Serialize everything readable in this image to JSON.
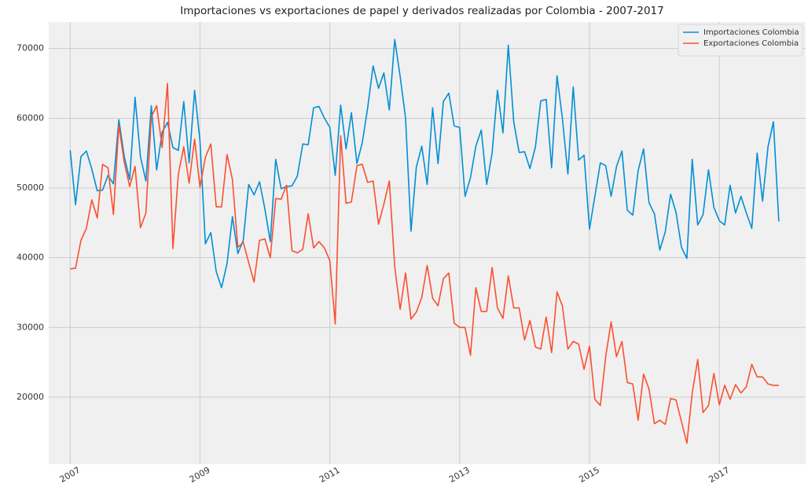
{
  "chart_data": {
    "type": "line",
    "title": "Importaciones vs exportaciones de papel y derivados realizadas por Colombia - 2007-2017",
    "x": [
      2007,
      2007.083,
      2007.167,
      2007.25,
      2007.333,
      2007.417,
      2007.5,
      2007.583,
      2007.667,
      2007.75,
      2007.833,
      2007.917,
      2008,
      2008.083,
      2008.167,
      2008.25,
      2008.333,
      2008.417,
      2008.5,
      2008.583,
      2008.667,
      2008.75,
      2008.833,
      2008.917,
      2009,
      2009.083,
      2009.167,
      2009.25,
      2009.333,
      2009.417,
      2009.5,
      2009.583,
      2009.667,
      2009.75,
      2009.833,
      2009.917,
      2010,
      2010.083,
      2010.167,
      2010.25,
      2010.333,
      2010.417,
      2010.5,
      2010.583,
      2010.667,
      2010.75,
      2010.833,
      2010.917,
      2011,
      2011.083,
      2011.167,
      2011.25,
      2011.333,
      2011.417,
      2011.5,
      2011.583,
      2011.667,
      2011.75,
      2011.833,
      2011.917,
      2012,
      2012.083,
      2012.167,
      2012.25,
      2012.333,
      2012.417,
      2012.5,
      2012.583,
      2012.667,
      2012.75,
      2012.833,
      2012.917,
      2013,
      2013.083,
      2013.167,
      2013.25,
      2013.333,
      2013.417,
      2013.5,
      2013.583,
      2013.667,
      2013.75,
      2013.833,
      2013.917,
      2014,
      2014.083,
      2014.167,
      2014.25,
      2014.333,
      2014.417,
      2014.5,
      2014.583,
      2014.667,
      2014.75,
      2014.833,
      2014.917,
      2015,
      2015.083,
      2015.167,
      2015.25,
      2015.333,
      2015.417,
      2015.5,
      2015.583,
      2015.667,
      2015.75,
      2015.833,
      2015.917,
      2016,
      2016.083,
      2016.167,
      2016.25,
      2016.333,
      2016.417,
      2016.5,
      2016.583,
      2016.667,
      2016.75,
      2016.833,
      2016.917,
      2017,
      2017.083,
      2017.167,
      2017.25,
      2017.333,
      2017.417,
      2017.5,
      2017.583,
      2017.667,
      2017.75,
      2017.833,
      2017.917
    ],
    "series": [
      {
        "name": "Importaciones Colombia",
        "color": "#008fd5",
        "values": [
          55400,
          47600,
          54500,
          55300,
          52700,
          49600,
          49700,
          51800,
          50600,
          59800,
          54500,
          51200,
          63000,
          54500,
          51000,
          61800,
          52600,
          58000,
          59400,
          55800,
          55400,
          62400,
          53600,
          64000,
          56800,
          42000,
          43600,
          38000,
          35700,
          39200,
          45900,
          40600,
          42500,
          50500,
          49000,
          50900,
          47000,
          42300,
          54100,
          49900,
          50200,
          50300,
          51700,
          56300,
          56200,
          61500,
          61700,
          60000,
          58700,
          51800,
          61900,
          55600,
          60800,
          53500,
          56500,
          61500,
          67500,
          64300,
          66500,
          61200,
          71300,
          66000,
          60000,
          43800,
          53000,
          56000,
          50500,
          61500,
          53500,
          62400,
          63600,
          58900,
          58700,
          48800,
          51500,
          56000,
          58300,
          50500,
          55000,
          64000,
          57900,
          70500,
          59500,
          55100,
          55200,
          52800,
          55900,
          62500,
          62700,
          52900,
          66100,
          60000,
          52000,
          64500,
          54000,
          54700,
          44100,
          48800,
          53600,
          53200,
          48800,
          53100,
          55300,
          46800,
          46100,
          52500,
          55600,
          47900,
          46300,
          41100,
          43700,
          49100,
          46500,
          41500,
          39900,
          54100,
          44700,
          46200,
          52600,
          47200,
          45300,
          44700,
          50400,
          46400,
          48800,
          46400,
          44200,
          55000,
          48100,
          55900,
          59500,
          45200
        ]
      },
      {
        "name": "Exportaciones Colombia",
        "color": "#fc4f30",
        "values": [
          38400,
          38500,
          42500,
          44200,
          48300,
          45700,
          53400,
          52900,
          46200,
          59000,
          53700,
          50200,
          53100,
          44300,
          46400,
          60200,
          61800,
          55800,
          65000,
          41300,
          52000,
          55900,
          50700,
          57000,
          50100,
          54400,
          56300,
          47300,
          47300,
          54800,
          51200,
          41500,
          42200,
          39300,
          36500,
          42500,
          42700,
          40000,
          48500,
          48400,
          50400,
          41000,
          40700,
          41200,
          46300,
          41400,
          42300,
          41400,
          39600,
          30500,
          57500,
          47800,
          48000,
          53200,
          53400,
          50800,
          51000,
          44800,
          47700,
          51000,
          38700,
          32600,
          37800,
          31200,
          32200,
          34300,
          38900,
          34200,
          33100,
          37000,
          37800,
          30600,
          30000,
          30000,
          26000,
          35700,
          32300,
          32300,
          38600,
          32800,
          31300,
          37400,
          32800,
          32800,
          28200,
          31000,
          27200,
          26900,
          31500,
          26400,
          35100,
          33100,
          26900,
          28000,
          27600,
          24000,
          27300,
          19700,
          18800,
          25800,
          30800,
          25800,
          28000,
          22100,
          21900,
          16700,
          23300,
          21200,
          16200,
          16700,
          16100,
          19800,
          19600,
          16500,
          13400,
          20600,
          25400,
          17800,
          18800,
          23400,
          18900,
          21700,
          19700,
          21800,
          20600,
          21500,
          24700,
          22900,
          22900,
          21900,
          21700,
          21700
        ]
      }
    ],
    "xlim": [
      2006.67,
      2018.33
    ],
    "xticks": [
      2007,
      2009,
      2011,
      2013,
      2015,
      2017
    ],
    "ylim": [
      10400,
      73800
    ],
    "yticks": [
      20000,
      30000,
      40000,
      50000,
      60000,
      70000
    ],
    "grid": true,
    "legend": "upper right"
  }
}
